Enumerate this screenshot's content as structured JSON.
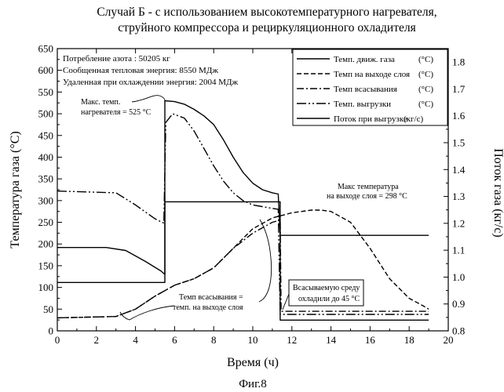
{
  "chart_data": {
    "type": "line",
    "title": [
      "Случай Б - с использованием высокотемпературного нагревателя,",
      "струйного компрессора и рециркуляционного охладителя"
    ],
    "xlabel": "Время (ч)",
    "ylabel": "Температура газа (°C)",
    "y2label": "Поток газа (кг/с)",
    "xlim": [
      0,
      20
    ],
    "ylim": [
      0,
      650
    ],
    "y2lim": [
      0.8,
      1.85
    ],
    "xticks": [
      "0",
      "2",
      "4",
      "6",
      "8",
      "10",
      "12",
      "14",
      "16",
      "18",
      "20"
    ],
    "yticks": [
      "0",
      "50",
      "100",
      "150",
      "200",
      "250",
      "300",
      "350",
      "400",
      "450",
      "500",
      "550",
      "600",
      "650"
    ],
    "y2ticks": [
      "0.8",
      "0.9",
      "1.0",
      "1.1",
      "1.2",
      "1.3",
      "1.4",
      "1.5",
      "1.6",
      "1.7",
      "1.8"
    ],
    "legend_position": "top-right",
    "info_lines": [
      "Потребление азота : 50205 кг",
      "Сообщенная тепловая энергия: 8550 МДж",
      "Удаленная при охлаждении энергия: 2004 МДж"
    ],
    "series": [
      {
        "name": "Темп. движ. газа",
        "unit": "(°C)",
        "axis": "left",
        "color": "#000000",
        "dash": "",
        "points": [
          [
            0,
            192
          ],
          [
            2.5,
            192
          ],
          [
            3.5,
            185
          ],
          [
            4.5,
            160
          ],
          [
            5.3,
            138
          ],
          [
            5.5,
            130
          ],
          [
            5.5,
            530
          ],
          [
            6,
            528
          ],
          [
            6.5,
            522
          ],
          [
            7,
            510
          ],
          [
            7.5,
            495
          ],
          [
            8,
            475
          ],
          [
            8.5,
            440
          ],
          [
            9,
            400
          ],
          [
            9.5,
            365
          ],
          [
            10,
            340
          ],
          [
            10.5,
            325
          ],
          [
            11,
            318
          ],
          [
            11.3,
            315
          ],
          [
            11.4,
            220
          ],
          [
            19,
            220
          ]
        ]
      },
      {
        "name": "Темп на выходе слоя",
        "unit": "(°C)",
        "axis": "left",
        "color": "#000000",
        "dash": "6,3",
        "points": [
          [
            0,
            30
          ],
          [
            3,
            33
          ],
          [
            4,
            50
          ],
          [
            5,
            80
          ],
          [
            6,
            105
          ],
          [
            7,
            120
          ],
          [
            8,
            145
          ],
          [
            9,
            190
          ],
          [
            10,
            235
          ],
          [
            11,
            260
          ],
          [
            12,
            272
          ],
          [
            13,
            278
          ],
          [
            13.5,
            278
          ],
          [
            14,
            275
          ],
          [
            15,
            250
          ],
          [
            16,
            190
          ],
          [
            17,
            120
          ],
          [
            18,
            75
          ],
          [
            18.7,
            58
          ],
          [
            19,
            50
          ]
        ]
      },
      {
        "name": "Темп всасывания",
        "unit": "(°C)",
        "axis": "left",
        "color": "#000000",
        "dash": "9,3,2,3",
        "points": [
          [
            0,
            30
          ],
          [
            3,
            33
          ],
          [
            4,
            50
          ],
          [
            5,
            80
          ],
          [
            6,
            105
          ],
          [
            7,
            120
          ],
          [
            8,
            145
          ],
          [
            9,
            190
          ],
          [
            10,
            225
          ],
          [
            11,
            250
          ],
          [
            11.4,
            255
          ],
          [
            11.45,
            45
          ],
          [
            19,
            45
          ]
        ]
      },
      {
        "name": "Темп. выгрузки",
        "unit": "(°C)",
        "axis": "left",
        "color": "#000000",
        "dash": "12,3,2,3,2,3",
        "points": [
          [
            0,
            322
          ],
          [
            3,
            318
          ],
          [
            4,
            290
          ],
          [
            5,
            258
          ],
          [
            5.45,
            248
          ],
          [
            5.55,
            480
          ],
          [
            5.9,
            500
          ],
          [
            6.5,
            490
          ],
          [
            7,
            460
          ],
          [
            7.5,
            420
          ],
          [
            8,
            380
          ],
          [
            8.5,
            345
          ],
          [
            9,
            318
          ],
          [
            9.5,
            300
          ],
          [
            10,
            290
          ],
          [
            11,
            282
          ],
          [
            11.3,
            280
          ],
          [
            11.4,
            38
          ],
          [
            19,
            38
          ]
        ]
      },
      {
        "name": "Поток при выгрузке",
        "unit": "(кг/с)",
        "axis": "right",
        "color": "#000000",
        "dash": "",
        "points": [
          [
            0,
            0.98
          ],
          [
            5.5,
            0.98
          ],
          [
            5.5,
            1.28
          ],
          [
            11.4,
            1.28
          ],
          [
            11.4,
            0.84
          ],
          [
            19,
            0.84
          ]
        ]
      }
    ],
    "annotations": [
      {
        "lines": [
          "Макс. темп.",
          "нагревателя = 525 °C"
        ],
        "at": [
          5.5,
          525
        ]
      },
      {
        "lines": [
          "Макс  температура",
          "на выходе слоя = 298 °C"
        ],
        "at": [
          13.5,
          278
        ]
      },
      {
        "lines": [
          "Темп всасывания =",
          "темп. на выходе слоя"
        ],
        "at": [
          9.5,
          205
        ]
      },
      {
        "lines": [
          "Всасываемую среду",
          "охладили до 45 °C"
        ],
        "at": [
          14,
          45
        ]
      }
    ]
  },
  "caption": "Фиг.8"
}
